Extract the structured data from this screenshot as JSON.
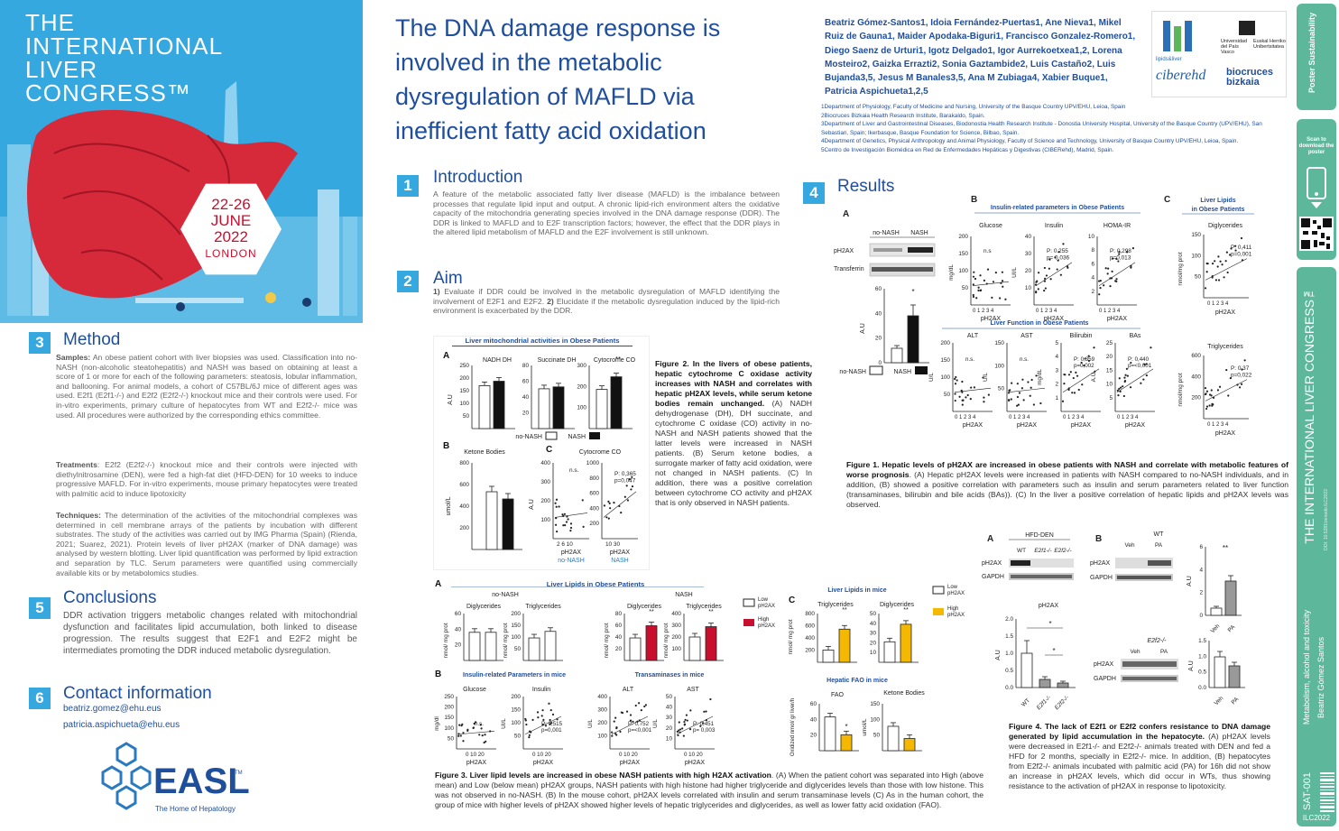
{
  "banner": {
    "congress_lines": [
      "THE",
      "INTERNATIONAL",
      "LIVER",
      "CONGRESS™"
    ],
    "dates": "22-26",
    "month": "JUNE",
    "year": "2022",
    "city": "LONDON"
  },
  "title": "The DNA damage response is involved in the metabolic dysregulation of MAFLD via inefficient fatty acid oxidation",
  "authors": "Beatriz Gómez-Santos1, Idoia Fernández-Puertas1, Ane Nieva1, Mikel Ruiz de Gauna1, Maider Apodaka-Biguri1, Francisco Gonzalez-Romero1, Diego Saenz de Urturi1, Igotz Delgado1, Igor Aurrekoetxea1,2, Lorena Mosteiro2, Gaizka Errazti2, Sonia Gaztambide2, Luis Castaño2, Luis Bujanda3,5, Jesus M Banales3,5, Ana M Zubiaga4, Xabier Buque1, Patricia Aspichueta1,2,5",
  "affiliations": [
    "1Department of Physiology, Faculty of Medicine and Nursing, University of the Basque Country UPV/EHU, Leioa, Spain",
    "2Biocruces Bizkaia Health Research Institute, Barakaldo, Spain.",
    "3Department of Liver and Gastrointestinal Diseases, Biodonostia Health Research Institute - Donostia University Hospital, University of the Basque Country (UPV/EHU), San Sebastian, Spain; Ikerbasque, Basque Foundation for Science, Bilbao, Spain.",
    "4Department of Genetics, Physical Anthropology and Animal Physiology, Faculty of Science and Technology, University of Basque Country UPV/EHU, Leioa, Spain.",
    "5Centro de Investigación Biomédica en Red de Enfermedades Hepáticas y Digestivas (CIBERehd), Madrid, Spain."
  ],
  "logos": {
    "lipids": "lipids&liver",
    "upv": "Universidad del País Vasco",
    "ehu": "Euskal Herriko Unibertsitatea",
    "ciberehd": "ciberehd",
    "biocruces": "biocruces bizkaia"
  },
  "sections": {
    "intro": {
      "num": "1",
      "title": "Introduction",
      "text": "A feature of the metabolic associated fatty liver disease (MAFLD) is the imbalance between processes that regulate lipid input and output. A chronic lipid-rich environment alters the oxidative capacity of the mitochondria generating species involved in the DNA damage response (DDR). The DDR is linked to MAFLD and to E2F transcription factors; however, the effect that the DDR plays in the altered lipid metabolism of MAFLD and the E2F involvement is still unknown."
    },
    "aim": {
      "num": "2",
      "title": "Aim",
      "p1_label": "1)",
      "p1": " Evaluate if DDR could be involved in the metabolic dysregulation of MAFLD identifying the involvement of E2F1 and E2F2. ",
      "p2_label": "2)",
      "p2": " Elucidate if the metabolic dysregulation induced by the lipid-rich environment is exacerbated by the DDR."
    },
    "method": {
      "num": "3",
      "title": "Method",
      "samples_label": "Samples:",
      "samples": " An obese patient cohort with liver biopsies was used. Classification into no-NASH (non-alcoholic steatohepatitis) and NASH was based on obtaining at least a score of 1 or more for each of the following parameters: steatosis, lobular inflammation, and ballooning. For animal models, a cohort of C57BL/6J mice of different ages was used. E2f1 (E2f1-/-) and E2f2 (E2f2-/-) knockout mice and their controls were used. For in-vitro experiments, primary culture of hepatocytes from WT and E2f2-/- mice was used. All procedures were authorized by the corresponding ethics committee.",
      "treat_label": "Treatments",
      "treat": ": E2f2 (E2f2-/-) knockout mice and their controls were injected with diethylnitrosamine (DEN), were fed a high-fat diet (HFD-DEN) for 10 weeks to induce progressive MAFLD. For in-vitro experiments, mouse primary hepatocytes were treated with palmitic acid to induce lipotoxicity",
      "tech_label": "Techniques:",
      "tech": " The determination of the activities of the mitochondrial complexes was determined in cell membrane arrays of the patients by incubation with different substrates. The study of the activities was carried out by IMG Pharma (Spain) (Rienda, 2021; Suarez, 2021). Protein levels of liver pH2AX (marker of DNA damage) was analysed by western blotting. Liver lipid quantification was performed by lipid extraction and separation by TLC. Serum parameters were quantified using commercially available kits or by metabolomics studies."
    },
    "concl": {
      "num": "5",
      "title": "Conclusions",
      "text": "DDR activation triggers metabolic changes related with mitochondrial dysfunction and facilitates lipid accumulation, both linked to disease progression. The results suggest that E2F1 and E2F2 might be intermediates promoting the DDR induced metabolic dysregulation."
    },
    "contact": {
      "num": "6",
      "title": "Contact information",
      "email1": "beatriz.gomez@ehu.eus",
      "email2": "patricia.aspichueta@ehu.eus"
    },
    "results": {
      "num": "4",
      "title": "Results"
    }
  },
  "easl": {
    "name": "EASL",
    "tm": "TM",
    "tagline": "The Home of Hepatology"
  },
  "fig1": {
    "a_label": "A",
    "b_label": "B",
    "c_label": "C",
    "nonash": "no-NASH",
    "nash": "NASH",
    "blot_rows": [
      "pH2AX",
      "Transferrin"
    ],
    "bar_ylabel": "A.U",
    "bar_ticks": [
      "0",
      "20",
      "40",
      "60"
    ],
    "star": "*",
    "b_title": "Insulin-related parameters in Obese Patients",
    "b_titles": [
      "Glucose",
      "Insulin",
      "HOMA-IR"
    ],
    "b_y": [
      "mg/dL",
      "UI/L",
      ""
    ],
    "b_stats": [
      "n.s",
      "P: 0.255\np= 0,036",
      "P: 0,298\np=0,013"
    ],
    "b_ticks": [
      [
        "50",
        "100",
        "150",
        "200"
      ],
      [
        "10",
        "20",
        "30",
        "40"
      ],
      [
        "2",
        "4",
        "6",
        "8",
        "10"
      ]
    ],
    "lf_title": "Liver Function in Obese Patients",
    "lf_titles": [
      "ALT",
      "AST",
      "Bilirubin",
      "BAs"
    ],
    "lf_y": [
      "U/L",
      "U/L",
      "mg/dL",
      "A.U"
    ],
    "lf_stats": [
      "n.s.",
      "n.s.",
      "P: 0,359\np=0,002",
      "P: 0,440\np=<0,001"
    ],
    "lf_ticks": [
      [
        "50",
        "100",
        "150",
        "200"
      ],
      [
        "50",
        "100",
        "150"
      ],
      [
        "1",
        "2",
        "3",
        "4",
        "5"
      ],
      [
        "5",
        "10",
        "15",
        "20",
        "25"
      ]
    ],
    "c_title1": "Liver Lipids",
    "c_title2": "in Obese Patients",
    "c_titles": [
      "Diglycerides",
      "Triglycerides"
    ],
    "c_y": "nmol/mg prot",
    "c_stats": [
      "P: 0,411\np=0,001",
      "P: 0,37\np=0,022"
    ],
    "c_ticks": [
      [
        "50",
        "100",
        "150"
      ],
      [
        "200",
        "400",
        "600"
      ]
    ],
    "x_axis": "pH2AX",
    "x_ticks": "0 1 2 3 4",
    "caption_bold": "Figure 1. Hepatic levels of pH2AX are increased in obese patients with NASH and correlate with metabolic features of worse prognosis",
    "caption": ". (A) Hepatic pH2AX levels were increased in patients with NASH compared to no-NASH individuals, and in addition, (B) showed a positive correlation with parameters such as insulin and serum parameters related to liver function (transaminases, bilirubin and bile acids (BAs)). (C) In the liver a positive correlation of hepatic lipids and pH2AX levels was observed."
  },
  "fig2": {
    "title": "Liver mitochondrial activities in Obese Patients",
    "a_label": "A",
    "b_label": "B",
    "c_label": "C",
    "a_titles": [
      "NADH DH",
      "Succinate DH",
      "Cytocrome CO"
    ],
    "a_y": "A.U",
    "legend_nonash": "no-NASH",
    "legend_nash": "NASH",
    "ketone": "Ketone Bodies",
    "ketone_y": "umol/L",
    "cyto": "Cytocrome CO",
    "cyto_y": "A.U",
    "ns": "n.s.",
    "stat": "P: 0,365\np=0,047",
    "x_axis": "pH2AX",
    "sub_nonash": "no-NASH",
    "sub_nash": "NASH",
    "star2": "**",
    "caption_bold": "Figure 2. In the livers of obese patients, hepatic cytochrome C oxidase activity increases with NASH and correlates with hepatic pH2AX levels, while serum ketone bodies remain unchanged.",
    "caption": " (A) NADH dehydrogenase (DH), DH succinate, and cytochrome C oxidase (CO) activity in no-NASH and NASH patients showed that the latter levels were increased in NASH patients. (B) Serum ketone bodies, a surrogate marker of fatty acid oxidation, were not changed in NASH patients. (C) In addition, there was a positive correlation between cytochrome CO activity and pH2AX that is only observed in NASH patients."
  },
  "fig3": {
    "a_label": "A",
    "b_label": "B",
    "c_label": "C",
    "a_title": "Liver Lipids in Obese Patients",
    "nonash": "no-NASH",
    "nash": "NASH",
    "dg": "Diglycerides",
    "tg": "Triglycerides",
    "y": "nmol/ mg prot",
    "legend_low": "Low\npH2AX",
    "legend_high": "High\npH2AX",
    "b_title1": "Insulin-related Parameters in mice",
    "b_title2": "Transaminases in mice",
    "glucose": "Glucose",
    "insulin": "Insulin",
    "alt": "ALT",
    "ast": "AST",
    "ins_stat": "P: 0,515\np=0,001",
    "alt_stat": "P: 0,752\np=<0,001",
    "ast_stat": "P: 0,451\np= 0,003",
    "ns": "n.s.",
    "x_axis": "pH2AX",
    "c_title1": "Liver Lipids in mice",
    "c_title2": "Hepatic FAO in mice",
    "fao": "FAO",
    "ketone": "Ketone Bodies",
    "fao_y": "Oxidized nmol/ gr liver/h",
    "ket_y": "umol/L",
    "caption_bold": "Figure 3. Liver lipid levels are increased in obese NASH patients with high H2AX activation",
    "caption": ". (A) When the patient cohort was separated into High (above mean) and Low (below mean) pH2AX groups, NASH patients with high histone had higher triglyceride and diglycerides levels than those with low histone. This was not observed in no-NASH. (B) In the mouse cohort, pH2AX levels correlated with insulin and serum transaminase levels (C) As in the human cohort, the group of mice with higher levels of pH2AX showed higher levels of hepatic triglycerides and diglycerides, as well as lower fatty acid oxidation (FAO)."
  },
  "fig4": {
    "a_label": "A",
    "b_label": "B",
    "hfd": "HFD-DEN",
    "wt": "WT",
    "e2f1": "E2f1-/-",
    "e2f2": "E2f2-/-",
    "rows": [
      "pH2AX",
      "GAPDH"
    ],
    "ph2ax": "pH2AX",
    "au": "A.U",
    "veh": "Veh",
    "pa": "PA",
    "star": "*",
    "star2": "**",
    "caption_bold": "Figure 4. The lack of E2f1 or E2f2 confers resistance to DNA damage generated by lipid accumulation in the hepatocyte.",
    "caption": " (A) pH2AX levels were decreased in E2f1-/- and E2f2-/- animals treated with DEN and fed a HFD for 2 months, specially in E2f2-/- mice. In addition, (B) hepatocytes from E2f2-/- animals incubated with palmitic acid (PA) for 16h did not show an increase in pH2AX levels, which did occur in WTs, thus showing resistance to the activation of pH2AX in response to lipotoxicity."
  },
  "sidebar": {
    "brand": "Poster Sustainability",
    "scan": "Scan to download the poster",
    "congress": "THE INTERNATIONAL LIVER CONGRESS™",
    "doi": "DOI: 10.5281/zenodo.ILC2022",
    "topic": "Metabolism, alcohol and toxicity",
    "author": "Beatriz Gómez Santos",
    "code": "SAT-001",
    "ilc": "ILC2022"
  },
  "colors": {
    "accent": "#36a8e0",
    "title": "#1f4e9c",
    "red": "#c8102e",
    "yellow": "#f5b800",
    "green": "#5cb79b"
  }
}
